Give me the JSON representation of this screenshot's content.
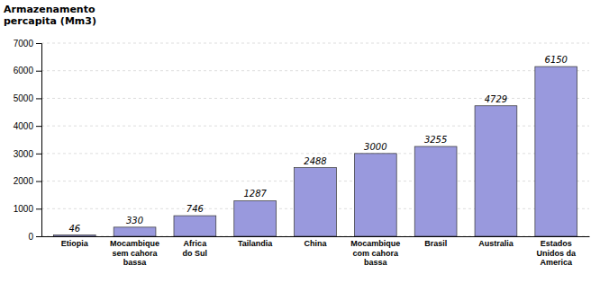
{
  "chart_data": {
    "type": "bar",
    "ylabel": "Armazenamento\npercapita (Mm3)",
    "categories": [
      "Etiopia",
      "Mocambique\nsem cahora\nbassa",
      "Africa\ndo Sul",
      "Tailandia",
      "China",
      "Mocambique\ncom cahora\nbassa",
      "Brasil",
      "Australia",
      "Estados\nUnidos da\nAmerica"
    ],
    "values": [
      46,
      330,
      746,
      1287,
      2488,
      3000,
      3255,
      4729,
      6150
    ],
    "color": "#9999dd",
    "ylim": [
      0,
      7000
    ],
    "yticks": [
      0,
      1000,
      2000,
      3000,
      4000,
      5000,
      6000,
      7000
    ],
    "grid": true,
    "data_labels": true
  }
}
